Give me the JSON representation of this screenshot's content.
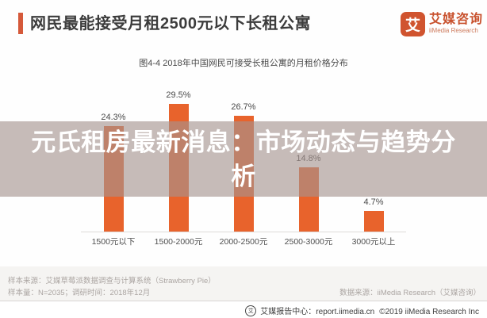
{
  "header": {
    "title": "网民最能接受月租2500元以下长租公寓"
  },
  "logo": {
    "mark": "艾",
    "name_cn": "艾媒咨询",
    "name_en": "iiMedia Research"
  },
  "chart_data": {
    "type": "bar",
    "title": "图4-4 2018年中国网民可接受长租公寓的月租价格分布",
    "categories": [
      "1500元以下",
      "1500-2000元",
      "2000-2500元",
      "2500-3000元",
      "3000元以上"
    ],
    "values": [
      24.3,
      29.5,
      26.7,
      14.8,
      4.7
    ],
    "data_labels": [
      "24.3%",
      "29.5%",
      "26.7%",
      "14.8%",
      "4.7%"
    ],
    "unit": "%",
    "ylim": [
      0,
      32
    ],
    "grid": false,
    "legend": "none",
    "bar_color": "#e8632c",
    "accent_color": "#d5593a"
  },
  "watermark": {
    "text": "元氏租房最新消息：市场动态与趋势分析"
  },
  "footnotes": {
    "sample_source": "样本来源：艾媒草莓派数据调查与计算系统（Strawberry Pie）",
    "sample_info": "样本量：N=2035；调研时间：2018年12月",
    "data_source": "数据来源：iiMedia Research（艾媒咨询）"
  },
  "footer": {
    "icon_glyph": "艾",
    "report_center": "艾媒报告中心：report.iimedia.cn",
    "copyright": "©2019  iiMedia Research Inc"
  }
}
